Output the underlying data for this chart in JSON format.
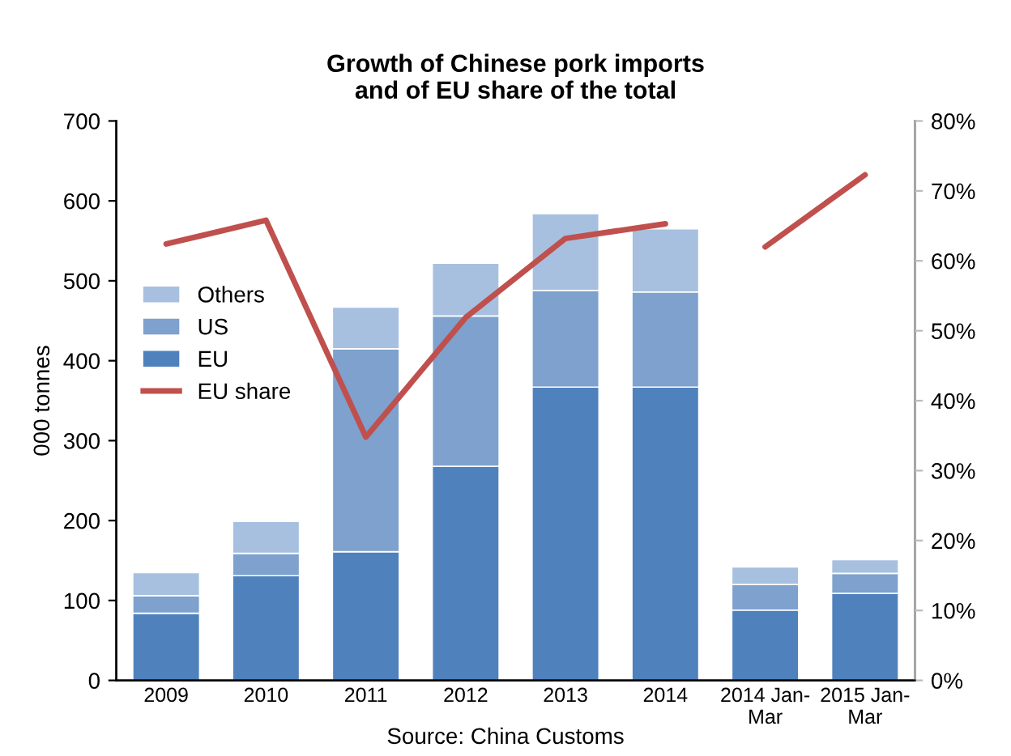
{
  "chart_data": {
    "type": "bar",
    "stacked": true,
    "title": "Growth of Chinese pork imports\nand of EU share of the total",
    "ylabel": "000 tonnes",
    "categories": [
      "2009",
      "2010",
      "2011",
      "2012",
      "2013",
      "2014",
      "2014 Jan-\nMar",
      "2015 Jan-\nMar"
    ],
    "series": [
      {
        "name": "EU",
        "color": "#4f81bd",
        "values": [
          84,
          131,
          161,
          268,
          367,
          367,
          88,
          109
        ]
      },
      {
        "name": "US",
        "color": "#7ea1cd",
        "values": [
          22,
          28,
          254,
          188,
          121,
          119,
          32,
          25
        ]
      },
      {
        "name": "Others",
        "color": "#a7c0df",
        "values": [
          29,
          40,
          52,
          66,
          96,
          79,
          22,
          17
        ]
      },
      {
        "name": "EU share",
        "type": "line",
        "axis": "y2",
        "color": "#c0504d",
        "values": [
          62.4,
          65.8,
          34.8,
          51.9,
          63.2,
          65.3,
          null,
          null
        ]
      },
      {
        "type": "line",
        "axis": "y2",
        "color": "#c0504d",
        "values": [
          null,
          null,
          null,
          null,
          null,
          null,
          62.0,
          72.3
        ]
      }
    ],
    "ylim": [
      0,
      700
    ],
    "yticks": [
      0,
      100,
      200,
      300,
      400,
      500,
      600,
      700
    ],
    "y2lim": [
      0,
      80
    ],
    "y2ticks": [
      {
        "value": 0,
        "label": "0%"
      },
      {
        "value": 10,
        "label": "10%"
      },
      {
        "value": 20,
        "label": "20%"
      },
      {
        "value": 30,
        "label": "30%"
      },
      {
        "value": 40,
        "label": "40%"
      },
      {
        "value": 50,
        "label": "50%"
      },
      {
        "value": 60,
        "label": "60%"
      },
      {
        "value": 70,
        "label": "70%"
      },
      {
        "value": 80,
        "label": "80%"
      }
    ],
    "legend": "left",
    "grid": false,
    "annotations": [
      "Source: China Customs"
    ]
  }
}
